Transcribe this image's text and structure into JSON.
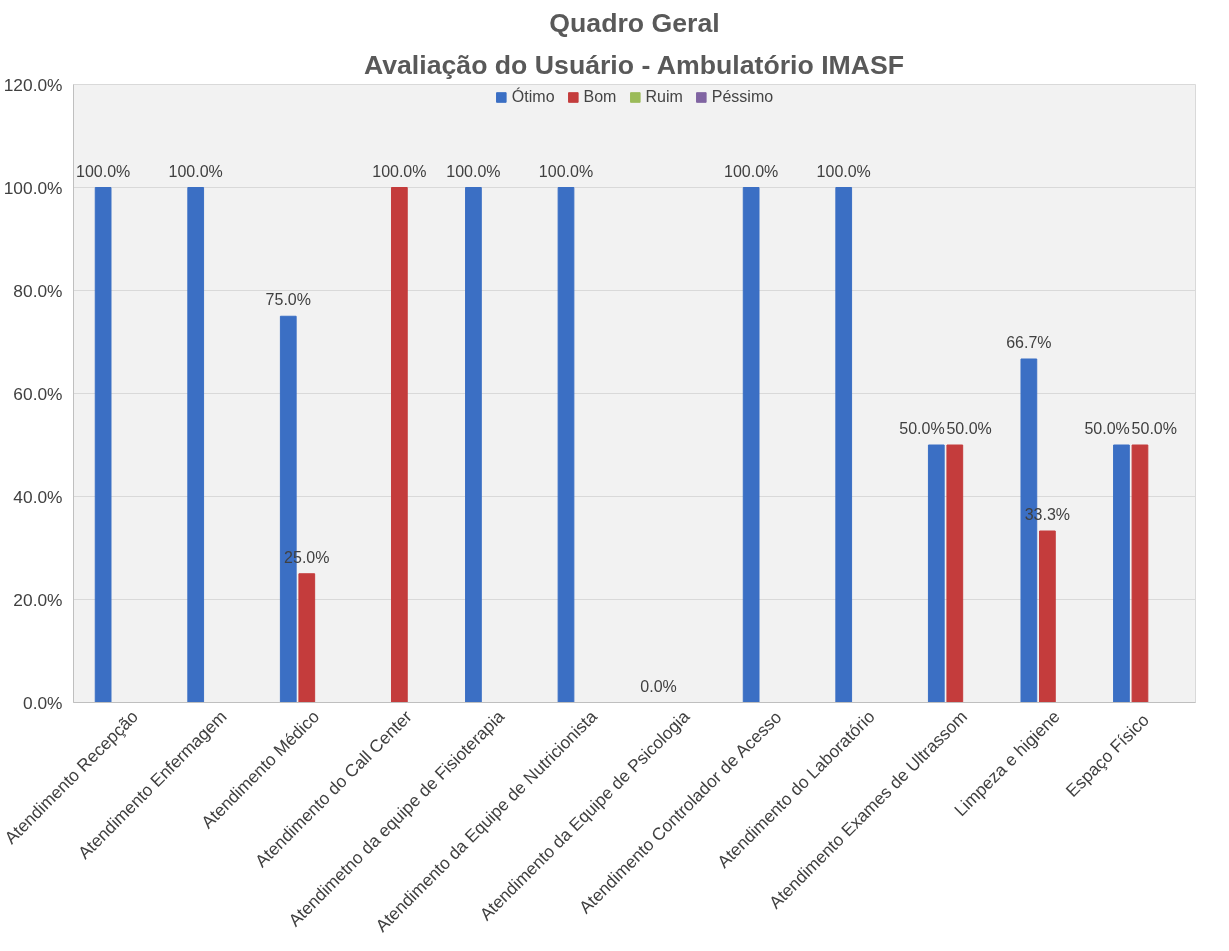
{
  "chart_data": {
    "type": "bar",
    "title": "Quadro Geral",
    "subtitle": "Avaliação do Usuário - Ambulatório IMASF",
    "categories": [
      "Atendimento Recepção",
      "Atendimento Enfermagem",
      "Atendimento Médico",
      "Atendimento do Call Center",
      "Atendimetno da equipe de Fisioterapia",
      "Atendimento da Equipe de Nutricionista",
      "Atendimento da Equipe de Psicologia",
      "Atendimento Controlador de Acesso",
      "Atendimento do Laboratório",
      "Atendimento Exames de Ultrassom",
      "Limpeza e higiene",
      "Espaço  Físico"
    ],
    "series": [
      {
        "name": "Ótimo",
        "color": "#3b6fc4",
        "values": [
          100,
          100,
          75,
          null,
          100,
          100,
          0,
          100,
          100,
          50,
          66.7,
          50
        ],
        "value_labels": [
          "100.0%",
          "100.0%",
          "75.0%",
          null,
          "100.0%",
          "100.0%",
          "0.0%",
          "100.0%",
          "100.0%",
          "50.0%",
          "66.7%",
          "50.0%"
        ]
      },
      {
        "name": "Bom",
        "color": "#c43c3c",
        "values": [
          null,
          null,
          25,
          100,
          null,
          null,
          null,
          null,
          null,
          50,
          33.3,
          50
        ],
        "value_labels": [
          null,
          null,
          "25.0%",
          "100.0%",
          null,
          null,
          null,
          null,
          null,
          "50.0%",
          "33.3%",
          "50.0%"
        ]
      },
      {
        "name": "Ruim",
        "color": "#9bbb59",
        "values": [
          null,
          null,
          null,
          null,
          null,
          null,
          null,
          null,
          null,
          null,
          null,
          null
        ]
      },
      {
        "name": "Péssimo",
        "color": "#8064a2",
        "values": [
          null,
          null,
          null,
          null,
          null,
          null,
          null,
          null,
          null,
          null,
          null,
          null
        ]
      }
    ],
    "ylim": [
      0,
      120
    ],
    "yticks": [
      {
        "value": 0,
        "label": "0.0%"
      },
      {
        "value": 20,
        "label": "20.0%"
      },
      {
        "value": 40,
        "label": "40.0%"
      },
      {
        "value": 60,
        "label": "60.0%"
      },
      {
        "value": 80,
        "label": "80.0%"
      },
      {
        "value": 100,
        "label": "100.0%"
      },
      {
        "value": 120,
        "label": "120.0%"
      }
    ],
    "grid": "y",
    "legend": "top"
  }
}
